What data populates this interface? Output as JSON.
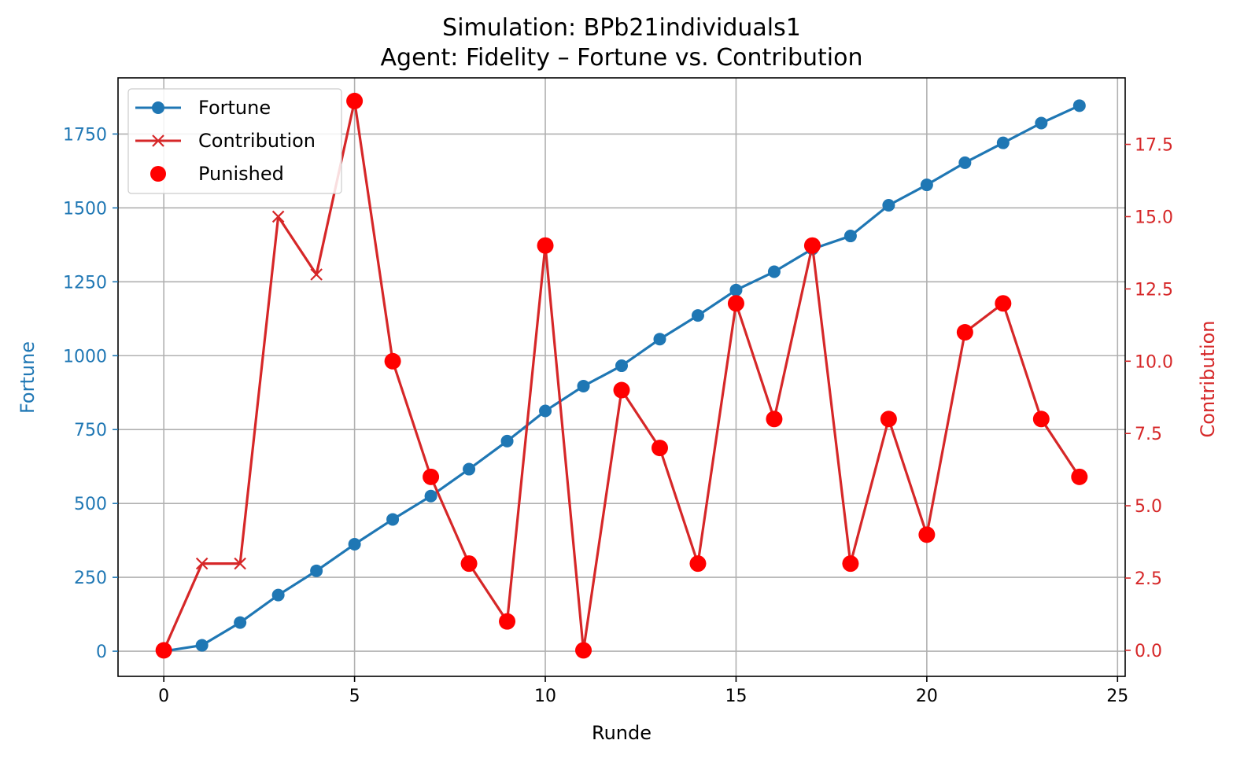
{
  "chart_data": {
    "type": "line",
    "title": "Simulation: BPb21individuals1",
    "subtitle": "Agent: Fidelity – Fortune vs. Contribution",
    "xlabel": "Runde",
    "ylabel_left": "Fortune",
    "ylabel_right": "Contribution",
    "xlim": [
      -1.2,
      25.2
    ],
    "ylim_left": [
      -85,
      1940
    ],
    "ylim_right": [
      -0.9,
      19.8
    ],
    "x_ticks": [
      0,
      5,
      10,
      15,
      20,
      25
    ],
    "x_tick_labels": [
      "0",
      "5",
      "10",
      "15",
      "20",
      "25"
    ],
    "y_left_ticks": [
      0,
      250,
      500,
      750,
      1000,
      1250,
      1500,
      1750
    ],
    "y_left_tick_labels": [
      "0",
      "250",
      "500",
      "750",
      "1000",
      "1250",
      "1500",
      "1750"
    ],
    "y_right_ticks": [
      0,
      2.5,
      5,
      7.5,
      10,
      12.5,
      15,
      17.5
    ],
    "y_right_tick_labels": [
      "0.0",
      "2.5",
      "5.0",
      "7.5",
      "10.0",
      "12.5",
      "15.0",
      "17.5"
    ],
    "grid": true,
    "legend_position": "upper-left",
    "x": [
      0,
      1,
      2,
      3,
      4,
      5,
      6,
      7,
      8,
      9,
      10,
      11,
      12,
      13,
      14,
      15,
      16,
      17,
      18,
      19,
      20,
      21,
      22,
      23,
      24
    ],
    "series": [
      {
        "name": "Fortune",
        "axis": "left",
        "color": "#1f77b4",
        "marker": "circle",
        "values": [
          0,
          20,
          97,
          190,
          272,
          362,
          446,
          525,
          616,
          711,
          813,
          897,
          966,
          1056,
          1136,
          1222,
          1284,
          1361,
          1405,
          1509,
          1578,
          1653,
          1720,
          1787,
          1846
        ]
      },
      {
        "name": "Contribution",
        "axis": "right",
        "color": "#d62728",
        "marker": "x",
        "values": [
          0,
          3,
          3,
          15,
          13,
          19,
          10,
          6,
          3,
          1,
          14,
          0,
          9,
          7,
          3,
          12,
          8,
          14,
          3,
          8,
          4,
          11,
          12,
          8,
          6
        ]
      },
      {
        "name": "Punished",
        "axis": "right",
        "color": "#ff0000",
        "marker": "dot",
        "x": [
          0,
          5,
          6,
          7,
          8,
          9,
          10,
          11,
          12,
          13,
          14,
          15,
          16,
          17,
          18,
          19,
          20,
          21,
          22,
          23,
          24
        ],
        "values": [
          0,
          19,
          10,
          6,
          3,
          1,
          14,
          0,
          9,
          7,
          3,
          12,
          8,
          14,
          3,
          8,
          4,
          11,
          12,
          8,
          6
        ]
      }
    ]
  }
}
